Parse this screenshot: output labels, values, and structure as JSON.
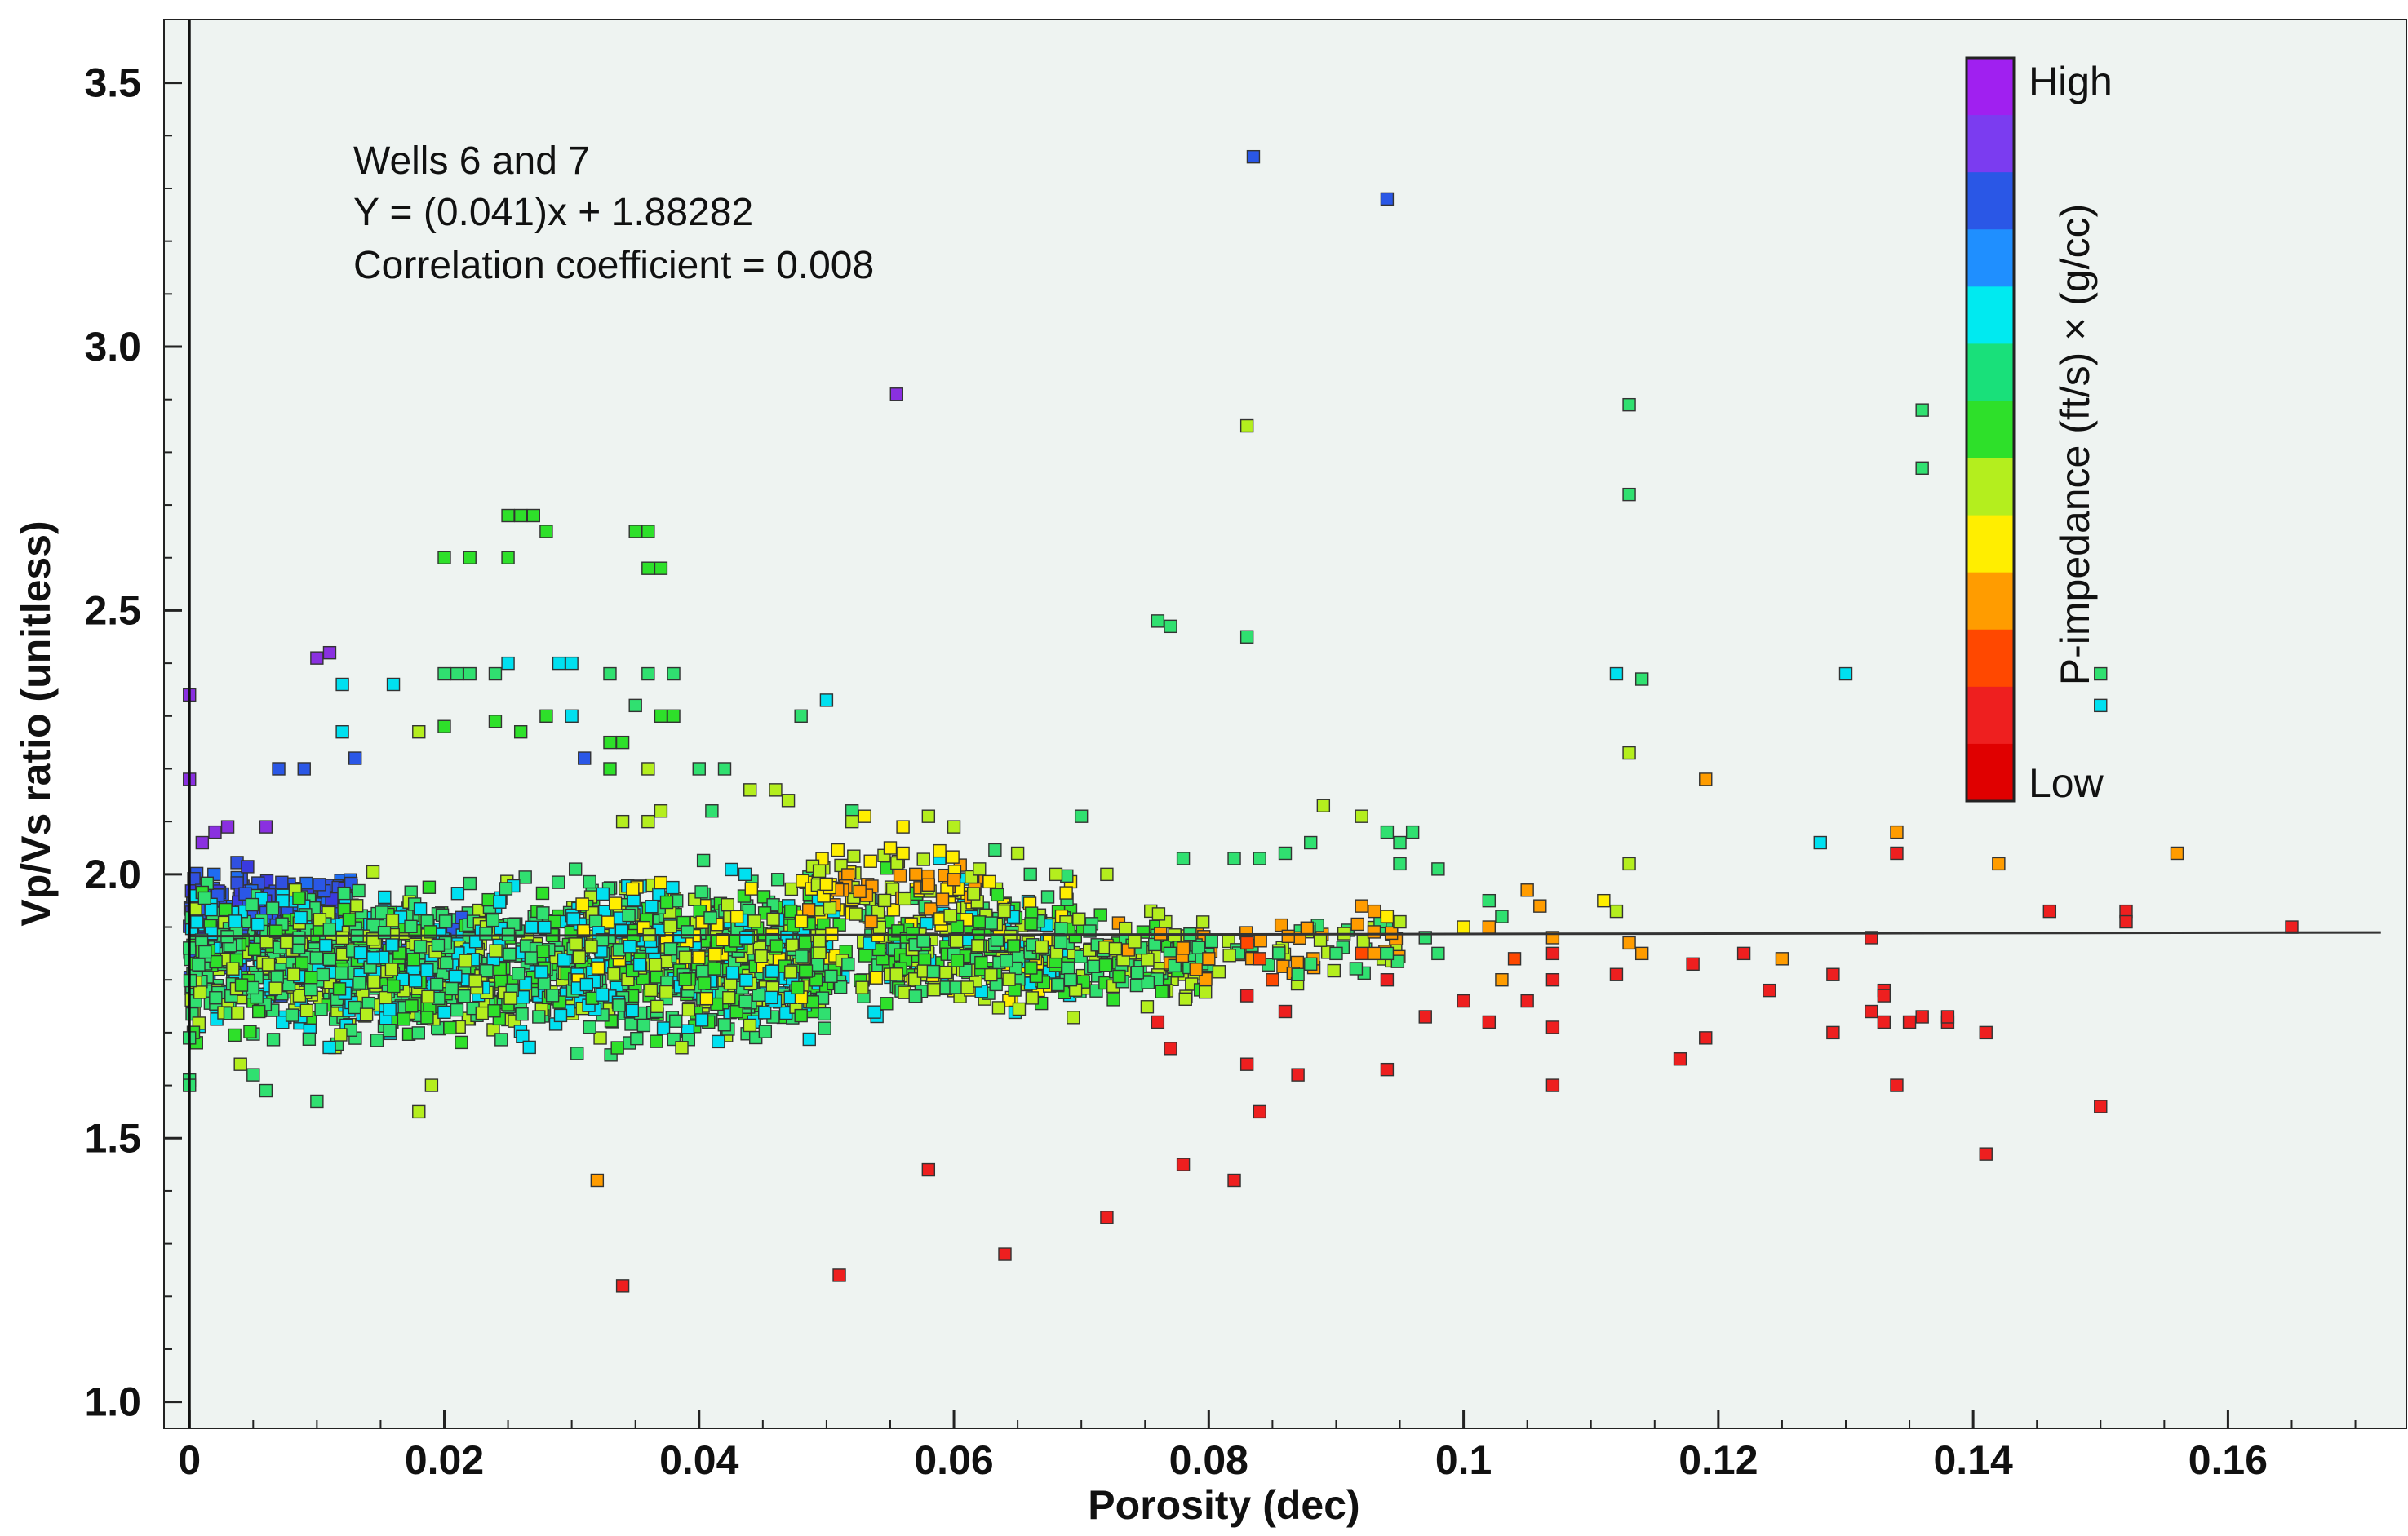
{
  "chart_data": {
    "type": "scatter",
    "xlabel": "Porosity (dec)",
    "ylabel": "Vp/Vs ratio (unitless)",
    "xlim": [
      -0.002,
      0.174
    ],
    "ylim": [
      0.95,
      3.62
    ],
    "xticks": [
      0,
      0.02,
      0.04,
      0.06,
      0.08,
      0.1,
      0.12,
      0.14,
      0.16
    ],
    "xtick_labels": [
      "0",
      "0.02",
      "0.04",
      "0.06",
      "0.08",
      "0.1",
      "0.12",
      "0.14",
      "0.16"
    ],
    "yticks": [
      1.0,
      1.5,
      2.0,
      2.5,
      3.0,
      3.5
    ],
    "ytick_labels": [
      "1.0",
      "1.5",
      "2.0",
      "2.5",
      "3.0",
      "3.5"
    ],
    "annotation": {
      "line1": "Wells 6 and 7",
      "line2": "Y = (0.041)x + 1.88282",
      "line3": "Correlation coefficient =  0.008"
    },
    "regression": {
      "slope": 0.041,
      "intercept": 1.88282,
      "x_range": [
        0,
        0.172
      ]
    },
    "colorbar": {
      "title": "P-impedance (ft/s) × (g/cc)",
      "high_label": "High",
      "low_label": "Low",
      "colors": [
        "#a020f0",
        "#7b3cf0",
        "#2a57e6",
        "#1f8fff",
        "#00eaf0",
        "#19e07a",
        "#2ee02a",
        "#b4ee1e",
        "#ffee00",
        "#ff9c00",
        "#ff4800",
        "#ee1f1f",
        "#e00000"
      ]
    },
    "points": [
      [
        0.0,
        2.34,
        "#8a30e0"
      ],
      [
        0.0,
        2.18,
        "#8a30e0"
      ],
      [
        0.0,
        1.61,
        "#30e070"
      ],
      [
        0.0,
        1.6,
        "#30e070"
      ],
      [
        0.0,
        1.69,
        "#30e070"
      ],
      [
        0.001,
        2.06,
        "#8a30e0"
      ],
      [
        0.002,
        2.08,
        "#8a30e0"
      ],
      [
        0.003,
        2.09,
        "#8a30e0"
      ],
      [
        0.006,
        2.09,
        "#8a30e0"
      ],
      [
        0.007,
        2.2,
        "#2a57e6"
      ],
      [
        0.009,
        2.2,
        "#2a57e6"
      ],
      [
        0.01,
        2.41,
        "#8a30e0"
      ],
      [
        0.011,
        2.42,
        "#8a30e0"
      ],
      [
        0.012,
        2.36,
        "#00e0f0"
      ],
      [
        0.012,
        2.27,
        "#00e0f0"
      ],
      [
        0.013,
        2.22,
        "#2a57e6"
      ],
      [
        0.016,
        2.36,
        "#00e0f0"
      ],
      [
        0.01,
        1.57,
        "#30e070"
      ],
      [
        0.018,
        1.55,
        "#b4ee1e"
      ],
      [
        0.019,
        1.6,
        "#b4ee1e"
      ],
      [
        0.004,
        1.64,
        "#b4ee1e"
      ],
      [
        0.006,
        1.59,
        "#30e070"
      ],
      [
        0.005,
        1.62,
        "#30e070"
      ],
      [
        0.02,
        2.6,
        "#2ee02a"
      ],
      [
        0.022,
        2.6,
        "#2ee02a"
      ],
      [
        0.025,
        2.68,
        "#2ee02a"
      ],
      [
        0.026,
        2.68,
        "#2ee02a"
      ],
      [
        0.027,
        2.68,
        "#2ee02a"
      ],
      [
        0.028,
        2.65,
        "#2ee02a"
      ],
      [
        0.025,
        2.6,
        "#2ee02a"
      ],
      [
        0.035,
        2.65,
        "#2ee02a"
      ],
      [
        0.036,
        2.65,
        "#2ee02a"
      ],
      [
        0.036,
        2.58,
        "#2ee02a"
      ],
      [
        0.037,
        2.58,
        "#2ee02a"
      ],
      [
        0.02,
        2.38,
        "#30e070"
      ],
      [
        0.021,
        2.38,
        "#30e070"
      ],
      [
        0.022,
        2.38,
        "#30e070"
      ],
      [
        0.024,
        2.38,
        "#30e070"
      ],
      [
        0.025,
        2.4,
        "#00e0f0"
      ],
      [
        0.029,
        2.4,
        "#00e0f0"
      ],
      [
        0.03,
        2.4,
        "#00e0f0"
      ],
      [
        0.033,
        2.38,
        "#30e070"
      ],
      [
        0.036,
        2.38,
        "#30e070"
      ],
      [
        0.038,
        2.38,
        "#30e070"
      ],
      [
        0.018,
        2.27,
        "#b4ee1e"
      ],
      [
        0.02,
        2.28,
        "#2ee02a"
      ],
      [
        0.024,
        2.29,
        "#2ee02a"
      ],
      [
        0.026,
        2.27,
        "#2ee02a"
      ],
      [
        0.028,
        2.3,
        "#2ee02a"
      ],
      [
        0.03,
        2.3,
        "#00e0f0"
      ],
      [
        0.033,
        2.25,
        "#2ee02a"
      ],
      [
        0.034,
        2.25,
        "#2ee02a"
      ],
      [
        0.035,
        2.32,
        "#30e070"
      ],
      [
        0.037,
        2.3,
        "#2ee02a"
      ],
      [
        0.038,
        2.3,
        "#2ee02a"
      ],
      [
        0.031,
        2.22,
        "#2a57e6"
      ],
      [
        0.033,
        2.2,
        "#2ee02a"
      ],
      [
        0.036,
        2.2,
        "#b4ee1e"
      ],
      [
        0.04,
        2.2,
        "#30e070"
      ],
      [
        0.042,
        2.2,
        "#30e070"
      ],
      [
        0.048,
        2.3,
        "#30e070"
      ],
      [
        0.05,
        2.33,
        "#00e0f0"
      ],
      [
        0.044,
        2.16,
        "#b4ee1e"
      ],
      [
        0.046,
        2.16,
        "#b4ee1e"
      ],
      [
        0.047,
        2.14,
        "#b4ee1e"
      ],
      [
        0.052,
        2.12,
        "#30e070"
      ],
      [
        0.034,
        2.1,
        "#b4ee1e"
      ],
      [
        0.036,
        2.1,
        "#b4ee1e"
      ],
      [
        0.037,
        2.12,
        "#b4ee1e"
      ],
      [
        0.041,
        2.12,
        "#30e070"
      ],
      [
        0.052,
        2.1,
        "#b4ee1e"
      ],
      [
        0.053,
        2.11,
        "#ffee00"
      ],
      [
        0.056,
        2.09,
        "#ffee00"
      ],
      [
        0.058,
        2.11,
        "#b4ee1e"
      ],
      [
        0.06,
        2.09,
        "#b4ee1e"
      ],
      [
        0.056,
        2.04,
        "#ffee00"
      ],
      [
        0.055,
        2.05,
        "#ffee00"
      ],
      [
        0.057,
        2.0,
        "#ff9c00"
      ],
      [
        0.058,
        1.98,
        "#ff9c00"
      ],
      [
        0.06,
        1.99,
        "#ff9c00"
      ],
      [
        0.062,
        2.01,
        "#b4ee1e"
      ],
      [
        0.065,
        2.04,
        "#b4ee1e"
      ],
      [
        0.066,
        2.0,
        "#30e070"
      ],
      [
        0.068,
        2.0,
        "#b4ee1e"
      ],
      [
        0.07,
        2.11,
        "#30e070"
      ],
      [
        0.072,
        2.0,
        "#b4ee1e"
      ],
      [
        0.076,
        2.48,
        "#30e070"
      ],
      [
        0.077,
        2.47,
        "#30e070"
      ],
      [
        0.083,
        2.45,
        "#30e070"
      ],
      [
        0.083,
        2.85,
        "#b4ee1e"
      ],
      [
        0.0835,
        3.36,
        "#2a57e6"
      ],
      [
        0.094,
        3.28,
        "#2a57e6"
      ],
      [
        0.0555,
        2.91,
        "#8a30e0"
      ],
      [
        0.078,
        2.03,
        "#30e070"
      ],
      [
        0.082,
        2.03,
        "#30e070"
      ],
      [
        0.084,
        2.03,
        "#30e070"
      ],
      [
        0.086,
        2.04,
        "#30e070"
      ],
      [
        0.088,
        2.06,
        "#30e070"
      ],
      [
        0.089,
        2.13,
        "#b4ee1e"
      ],
      [
        0.092,
        2.11,
        "#b4ee1e"
      ],
      [
        0.094,
        2.08,
        "#30e070"
      ],
      [
        0.095,
        2.06,
        "#30e070"
      ],
      [
        0.096,
        2.08,
        "#30e070"
      ],
      [
        0.095,
        2.02,
        "#30e070"
      ],
      [
        0.098,
        2.01,
        "#30e070"
      ],
      [
        0.102,
        1.95,
        "#30e070"
      ],
      [
        0.105,
        1.97,
        "#ff9c00"
      ],
      [
        0.106,
        1.94,
        "#ff9c00"
      ],
      [
        0.1,
        1.9,
        "#ffee00"
      ],
      [
        0.102,
        1.9,
        "#ff9c00"
      ],
      [
        0.103,
        1.92,
        "#30e070"
      ],
      [
        0.092,
        1.94,
        "#ff9c00"
      ],
      [
        0.093,
        1.93,
        "#ff9c00"
      ],
      [
        0.094,
        1.92,
        "#ffee00"
      ],
      [
        0.095,
        1.91,
        "#b4ee1e"
      ],
      [
        0.097,
        1.88,
        "#30e070"
      ],
      [
        0.098,
        1.85,
        "#30e070"
      ],
      [
        0.094,
        1.85,
        "#30e070"
      ],
      [
        0.093,
        1.85,
        "#ff9c00"
      ],
      [
        0.092,
        1.85,
        "#ff4800"
      ],
      [
        0.094,
        1.8,
        "#ee1f1f"
      ],
      [
        0.087,
        1.81,
        "#30e070"
      ],
      [
        0.088,
        1.83,
        "#30e070"
      ],
      [
        0.09,
        1.85,
        "#30e070"
      ],
      [
        0.078,
        1.86,
        "#ff9c00"
      ],
      [
        0.079,
        1.82,
        "#ff9c00"
      ],
      [
        0.08,
        1.84,
        "#ff9c00"
      ],
      [
        0.083,
        1.87,
        "#ff4800"
      ],
      [
        0.084,
        1.84,
        "#ff4800"
      ],
      [
        0.083,
        1.77,
        "#ee1f1f"
      ],
      [
        0.085,
        1.8,
        "#ff4800"
      ],
      [
        0.086,
        1.74,
        "#ee1f1f"
      ],
      [
        0.076,
        1.72,
        "#ee1f1f"
      ],
      [
        0.077,
        1.67,
        "#ee1f1f"
      ],
      [
        0.083,
        1.64,
        "#ee1f1f"
      ],
      [
        0.084,
        1.55,
        "#ee1f1f"
      ],
      [
        0.078,
        1.45,
        "#ee1f1f"
      ],
      [
        0.082,
        1.42,
        "#ee1f1f"
      ],
      [
        0.072,
        1.35,
        "#ee1f1f"
      ],
      [
        0.064,
        1.28,
        "#ee1f1f"
      ],
      [
        0.051,
        1.24,
        "#ee1f1f"
      ],
      [
        0.058,
        1.44,
        "#ee1f1f"
      ],
      [
        0.034,
        1.22,
        "#ee1f1f"
      ],
      [
        0.032,
        1.42,
        "#ff9c00"
      ],
      [
        0.087,
        1.62,
        "#ee1f1f"
      ],
      [
        0.094,
        1.63,
        "#ee1f1f"
      ],
      [
        0.097,
        1.73,
        "#ee1f1f"
      ],
      [
        0.1,
        1.76,
        "#ee1f1f"
      ],
      [
        0.102,
        1.72,
        "#ee1f1f"
      ],
      [
        0.103,
        1.8,
        "#ff9c00"
      ],
      [
        0.105,
        1.76,
        "#ee1f1f"
      ],
      [
        0.104,
        1.84,
        "#ff4800"
      ],
      [
        0.107,
        1.85,
        "#ee1f1f"
      ],
      [
        0.107,
        1.71,
        "#ee1f1f"
      ],
      [
        0.107,
        1.6,
        "#ee1f1f"
      ],
      [
        0.107,
        1.8,
        "#ee1f1f"
      ],
      [
        0.107,
        1.88,
        "#ff9c00"
      ],
      [
        0.112,
        1.81,
        "#ee1f1f"
      ],
      [
        0.113,
        1.87,
        "#ff9c00"
      ],
      [
        0.114,
        1.85,
        "#ff9c00"
      ],
      [
        0.118,
        1.83,
        "#ee1f1f"
      ],
      [
        0.117,
        1.65,
        "#ee1f1f"
      ],
      [
        0.119,
        1.69,
        "#ee1f1f"
      ],
      [
        0.122,
        1.85,
        "#ee1f1f"
      ],
      [
        0.124,
        1.78,
        "#ee1f1f"
      ],
      [
        0.125,
        1.84,
        "#ff9c00"
      ],
      [
        0.129,
        1.81,
        "#ee1f1f"
      ],
      [
        0.129,
        1.7,
        "#ee1f1f"
      ],
      [
        0.132,
        1.74,
        "#ee1f1f"
      ],
      [
        0.133,
        1.72,
        "#ee1f1f"
      ],
      [
        0.133,
        1.78,
        "#ee1f1f"
      ],
      [
        0.132,
        1.88,
        "#ee1f1f"
      ],
      [
        0.133,
        1.77,
        "#ee1f1f"
      ],
      [
        0.134,
        1.6,
        "#ee1f1f"
      ],
      [
        0.135,
        1.72,
        "#ee1f1f"
      ],
      [
        0.136,
        1.73,
        "#ee1f1f"
      ],
      [
        0.138,
        1.72,
        "#ee1f1f"
      ],
      [
        0.138,
        1.73,
        "#ee1f1f"
      ],
      [
        0.141,
        1.7,
        "#ee1f1f"
      ],
      [
        0.141,
        1.47,
        "#ee1f1f"
      ],
      [
        0.15,
        1.56,
        "#ee1f1f"
      ],
      [
        0.146,
        1.93,
        "#ee1f1f"
      ],
      [
        0.152,
        1.93,
        "#ee1f1f"
      ],
      [
        0.152,
        1.91,
        "#ee1f1f"
      ],
      [
        0.165,
        1.9,
        "#ee1f1f"
      ],
      [
        0.156,
        2.04,
        "#ff9c00"
      ],
      [
        0.142,
        2.02,
        "#ff9c00"
      ],
      [
        0.134,
        2.08,
        "#ff9c00"
      ],
      [
        0.134,
        2.04,
        "#ee1f1f"
      ],
      [
        0.119,
        2.18,
        "#ff9c00"
      ],
      [
        0.111,
        1.95,
        "#ffee00"
      ],
      [
        0.112,
        1.93,
        "#b4ee1e"
      ],
      [
        0.113,
        2.02,
        "#b4ee1e"
      ],
      [
        0.113,
        2.23,
        "#b4ee1e"
      ],
      [
        0.112,
        2.38,
        "#00e0f0"
      ],
      [
        0.114,
        2.37,
        "#30e070"
      ],
      [
        0.113,
        2.72,
        "#30e070"
      ],
      [
        0.113,
        2.89,
        "#30e070"
      ],
      [
        0.136,
        2.88,
        "#30e070"
      ],
      [
        0.136,
        2.77,
        "#30e070"
      ],
      [
        0.13,
        2.38,
        "#00e0f0"
      ],
      [
        0.128,
        2.06,
        "#00e0f0"
      ],
      [
        0.15,
        2.38,
        "#30e070"
      ],
      [
        0.15,
        2.32,
        "#00e0f0"
      ]
    ],
    "cloud": [
      {
        "x": [
          0.0,
          0.013
        ],
        "y": [
          1.76,
          2.04
        ],
        "n": 420,
        "colors": [
          "#2a57e6",
          "#3050e0",
          "#1f6cf0",
          "#3a3ae0"
        ]
      },
      {
        "x": [
          0.0,
          0.022
        ],
        "y": [
          1.72,
          2.0
        ],
        "n": 220,
        "colors": [
          "#00e0f0",
          "#2a57e6",
          "#30e070"
        ]
      },
      {
        "x": [
          0.0,
          0.05
        ],
        "y": [
          1.63,
          2.02
        ],
        "n": 1250,
        "colors": [
          "#30e070",
          "#2ee02a",
          "#00e0f0",
          "#30e070",
          "#b4ee1e"
        ]
      },
      {
        "x": [
          0.03,
          0.07
        ],
        "y": [
          1.68,
          2.07
        ],
        "n": 520,
        "colors": [
          "#30e070",
          "#b4ee1e",
          "#2ee02a",
          "#00e0f0",
          "#ffee00"
        ]
      },
      {
        "x": [
          0.048,
          0.062
        ],
        "y": [
          1.88,
          2.07
        ],
        "n": 80,
        "colors": [
          "#ffee00",
          "#ff9c00",
          "#b4ee1e"
        ]
      },
      {
        "x": [
          0.055,
          0.08
        ],
        "y": [
          1.72,
          1.95
        ],
        "n": 220,
        "colors": [
          "#30e070",
          "#2ee02a",
          "#b4ee1e"
        ]
      },
      {
        "x": [
          0.07,
          0.095
        ],
        "y": [
          1.78,
          1.95
        ],
        "n": 90,
        "colors": [
          "#30e070",
          "#b4ee1e",
          "#ff9c00"
        ]
      }
    ]
  }
}
